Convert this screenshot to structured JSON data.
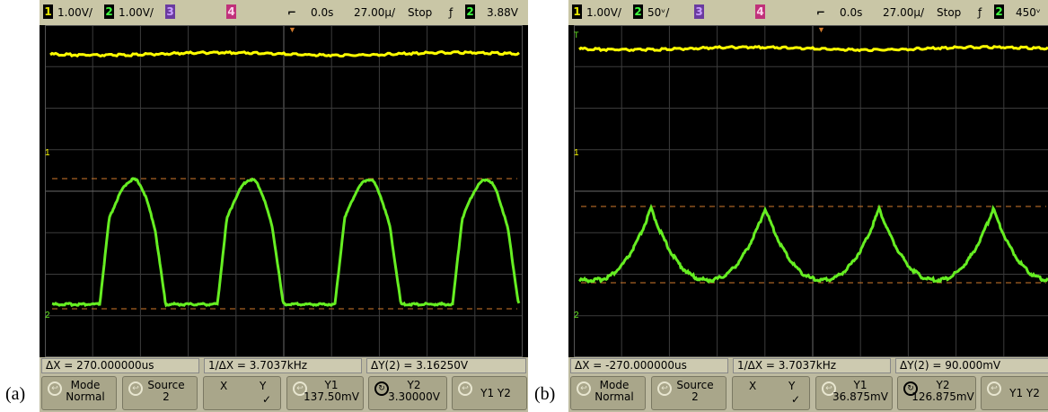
{
  "panels": [
    {
      "label": "(a)",
      "status": {
        "ch1_num": "1",
        "ch1_scale": "1.00V/",
        "ch2_num": "2",
        "ch2_scale": "1.00V/",
        "ch3_num": "3",
        "ch4_num": "4",
        "time_offset": "0.0s",
        "timebase": "27.00µ/",
        "run_state": "Stop",
        "trig_slope": "ƒ",
        "trig_ch": "2",
        "trig_level": "3.88V"
      },
      "markers": {
        "ch1": "1",
        "ch2": "2",
        "trig": "T"
      },
      "measurements": {
        "dx": "ΔX = 270.000000us",
        "inv_dx": "1/ΔX = 3.7037kHz",
        "dy": "ΔY(2) = 3.16250V"
      },
      "softkeys": {
        "mode_title": "Mode",
        "mode_value": "Normal",
        "source_title": "Source",
        "source_value": "2",
        "x_label": "X",
        "y_label": "Y",
        "check": "✓",
        "y1_title": "Y1",
        "y1_value": "137.50mV",
        "y2_title": "Y2",
        "y2_value": "3.30000V",
        "y1y2_label": "Y1 Y2"
      },
      "colors": {
        "ch1": "#ffff00",
        "ch2": "#66ee22",
        "cursor": "#d27a2c"
      }
    },
    {
      "label": "(b)",
      "status": {
        "ch1_num": "1",
        "ch1_scale": "1.00V/",
        "ch2_num": "2",
        "ch2_scale": "50ᵛ/",
        "ch3_num": "3",
        "ch4_num": "4",
        "time_offset": "0.0s",
        "timebase": "27.00µ/",
        "run_state": "Stop",
        "trig_slope": "ƒ",
        "trig_ch": "2",
        "trig_level": "450ᵛ"
      },
      "markers": {
        "ch1": "1",
        "ch2": "2",
        "trig": "T"
      },
      "measurements": {
        "dx": "ΔX = -270.000000us",
        "inv_dx": "1/ΔX = 3.7037kHz",
        "dy": "ΔY(2) = 90.000mV"
      },
      "softkeys": {
        "mode_title": "Mode",
        "mode_value": "Normal",
        "source_title": "Source",
        "source_value": "2",
        "x_label": "X",
        "y_label": "Y",
        "check": "✓",
        "y1_title": "Y1",
        "y1_value": "36.875mV",
        "y2_title": "Y2",
        "y2_value": "126.875mV",
        "y1y2_label": "Y1 Y2"
      },
      "colors": {
        "ch1": "#ffff00",
        "ch2": "#66ee22",
        "cursor": "#d27a2c"
      }
    }
  ]
}
